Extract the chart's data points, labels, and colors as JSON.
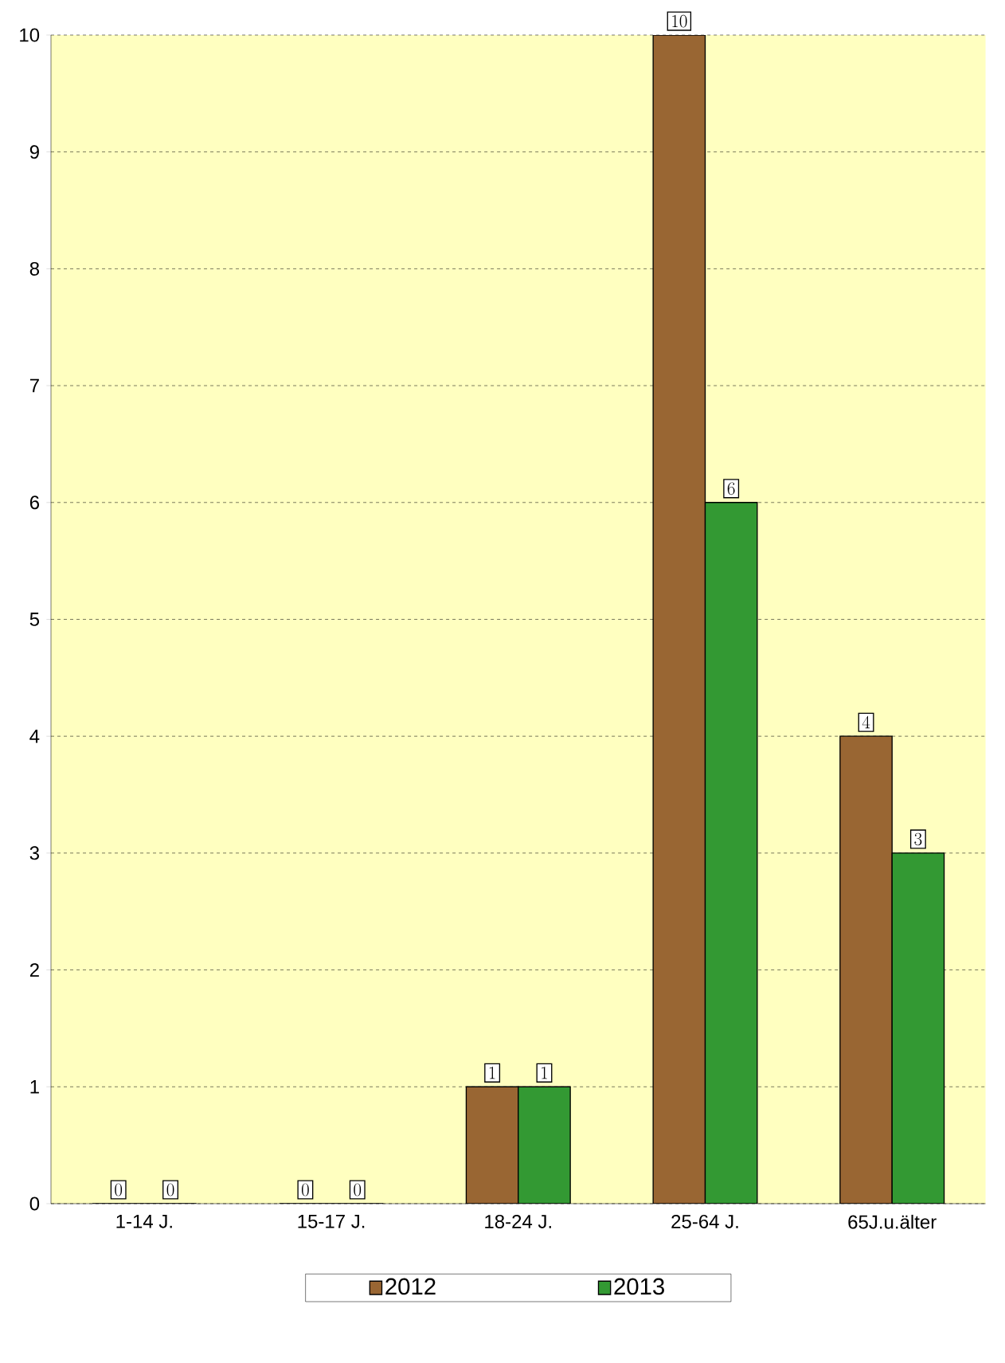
{
  "chart_data": {
    "type": "bar",
    "categories": [
      "1-14 J.",
      "15-17 J.",
      "18-24 J.",
      "25-64 J.",
      "65J.u.älter"
    ],
    "series": [
      {
        "name": "2012",
        "color": "#996633",
        "values": [
          0,
          0,
          1,
          10,
          4
        ]
      },
      {
        "name": "2013",
        "color": "#339933",
        "values": [
          0,
          0,
          1,
          6,
          3
        ]
      }
    ],
    "ylim": [
      0,
      10
    ],
    "yticks": [
      0,
      1,
      2,
      3,
      4,
      5,
      6,
      7,
      8,
      9,
      10
    ],
    "grid": "y",
    "legend": "bottom",
    "data_labels": true
  }
}
